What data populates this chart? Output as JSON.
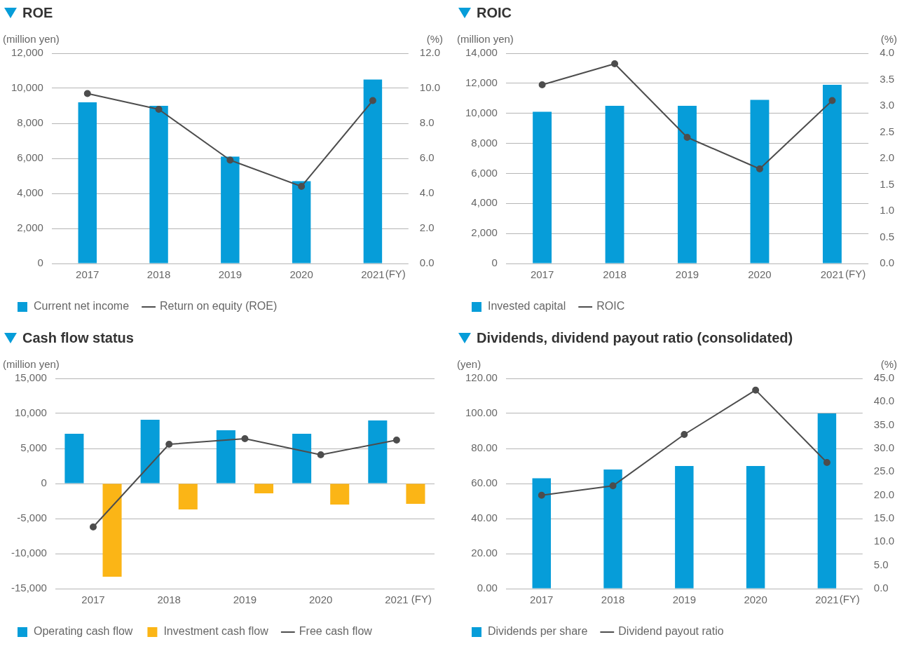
{
  "chart_data": [
    {
      "type": "bar",
      "title": "ROE",
      "categories": [
        "2017",
        "2018",
        "2019",
        "2020",
        "2021"
      ],
      "xlabel": "(FY)",
      "ylabel": "(million yen)",
      "y2label": "(%)",
      "series": [
        {
          "name": "Current net income",
          "color": "#069dd9",
          "values": [
            9200,
            9000,
            6100,
            4700,
            10500
          ]
        },
        {
          "name": "Return on equity (ROE)",
          "type": "line",
          "axis": "y2",
          "color": "#4d4d4d",
          "values": [
            9.7,
            8.8,
            5.9,
            4.4,
            9.3
          ]
        }
      ],
      "ylim": [
        0,
        12000
      ],
      "yticks": [
        {
          "value": 0,
          "label": "0"
        },
        {
          "value": 2000,
          "label": "2,000"
        },
        {
          "value": 4000,
          "label": "4,000"
        },
        {
          "value": 6000,
          "label": "6,000"
        },
        {
          "value": 8000,
          "label": "8,000"
        },
        {
          "value": 10000,
          "label": "10,000"
        },
        {
          "value": 12000,
          "label": "12,000"
        }
      ],
      "y2lim": [
        0,
        12
      ],
      "y2ticks": [
        {
          "value": 0,
          "label": "0.0"
        },
        {
          "value": 2,
          "label": "2.0"
        },
        {
          "value": 4,
          "label": "4.0"
        },
        {
          "value": 6,
          "label": "6.0"
        },
        {
          "value": 8,
          "label": "8.0"
        },
        {
          "value": 10,
          "label": "10.0"
        },
        {
          "value": 12,
          "label": "12.0"
        }
      ],
      "grid": "y",
      "legend": "bottom left",
      "marker": "circle",
      "line_style": "solid"
    },
    {
      "type": "bar",
      "title": "ROIC",
      "categories": [
        "2017",
        "2018",
        "2019",
        "2020",
        "2021"
      ],
      "xlabel": "(FY)",
      "ylabel": "(million yen)",
      "y2label": "(%)",
      "series": [
        {
          "name": "Invested capital",
          "color": "#069dd9",
          "values": [
            10100,
            10500,
            10500,
            10900,
            11900
          ]
        },
        {
          "name": "ROIC",
          "type": "line",
          "axis": "y2",
          "color": "#4d4d4d",
          "values": [
            3.4,
            3.8,
            2.4,
            1.8,
            3.1
          ]
        }
      ],
      "ylim": [
        0,
        14000
      ],
      "yticks": [
        {
          "value": 0,
          "label": "0"
        },
        {
          "value": 2000,
          "label": "2,000"
        },
        {
          "value": 4000,
          "label": "4,000"
        },
        {
          "value": 6000,
          "label": "6,000"
        },
        {
          "value": 8000,
          "label": "8,000"
        },
        {
          "value": 10000,
          "label": "10,000"
        },
        {
          "value": 12000,
          "label": "12,000"
        },
        {
          "value": 14000,
          "label": "14,000"
        }
      ],
      "y2lim": [
        0,
        4
      ],
      "y2ticks": [
        {
          "value": 0,
          "label": "0.0"
        },
        {
          "value": 0.5,
          "label": "0.5"
        },
        {
          "value": 1,
          "label": "1.0"
        },
        {
          "value": 1.5,
          "label": "1.5"
        },
        {
          "value": 2,
          "label": "2.0"
        },
        {
          "value": 2.5,
          "label": "2.5"
        },
        {
          "value": 3,
          "label": "3.0"
        },
        {
          "value": 3.5,
          "label": "3.5"
        },
        {
          "value": 4,
          "label": "4.0"
        }
      ],
      "grid": "y",
      "legend": "bottom left",
      "marker": "circle",
      "line_style": "solid"
    },
    {
      "type": "bar",
      "title": "Cash flow status",
      "categories": [
        "2017",
        "2018",
        "2019",
        "2020",
        "2021"
      ],
      "xlabel": "(FY)",
      "ylabel": "(million yen)",
      "series": [
        {
          "name": "Operating cash flow",
          "color": "#069dd9",
          "values": [
            7100,
            9100,
            7600,
            7100,
            9000
          ]
        },
        {
          "name": "Investment cash flow",
          "color": "#fbb516",
          "values": [
            -13300,
            -3700,
            -1400,
            -3000,
            -2900
          ]
        },
        {
          "name": "Free cash flow",
          "type": "line",
          "color": "#4d4d4d",
          "values": [
            -6200,
            5600,
            6400,
            4100,
            6200
          ]
        }
      ],
      "ylim": [
        -15000,
        15000
      ],
      "yticks": [
        {
          "value": -15000,
          "label": "-15,000"
        },
        {
          "value": -10000,
          "label": "-10,000"
        },
        {
          "value": -5000,
          "label": "-5,000"
        },
        {
          "value": 0,
          "label": "0"
        },
        {
          "value": 5000,
          "label": "5,000"
        },
        {
          "value": 10000,
          "label": "10,000"
        },
        {
          "value": 15000,
          "label": "15,000"
        }
      ],
      "grid": "y",
      "legend": "bottom left",
      "marker": "circle",
      "line_style": "solid"
    },
    {
      "type": "bar",
      "title": "Dividends, dividend payout ratio (consolidated)",
      "categories": [
        "2017",
        "2018",
        "2019",
        "2020",
        "2021"
      ],
      "xlabel": "(FY)",
      "ylabel": "(yen)",
      "y2label": "(%)",
      "series": [
        {
          "name": "Dividends per share",
          "color": "#069dd9",
          "values": [
            63,
            68,
            70,
            70,
            100
          ]
        },
        {
          "name": "Dividend payout ratio",
          "type": "line",
          "axis": "y2",
          "color": "#4d4d4d",
          "values": [
            20.0,
            22.0,
            33.0,
            42.5,
            27.0
          ]
        }
      ],
      "ylim": [
        0,
        120
      ],
      "yticks": [
        {
          "value": 0,
          "label": "0.00"
        },
        {
          "value": 20,
          "label": "20.00"
        },
        {
          "value": 40,
          "label": "40.00"
        },
        {
          "value": 60,
          "label": "60.00"
        },
        {
          "value": 80,
          "label": "80.00"
        },
        {
          "value": 100,
          "label": "100.00"
        },
        {
          "value": 120,
          "label": "120.00"
        }
      ],
      "y2lim": [
        0,
        45
      ],
      "y2ticks": [
        {
          "value": 0,
          "label": "0.0"
        },
        {
          "value": 5,
          "label": "5.0"
        },
        {
          "value": 10,
          "label": "10.0"
        },
        {
          "value": 15,
          "label": "15.0"
        },
        {
          "value": 20,
          "label": "20.0"
        },
        {
          "value": 25,
          "label": "25.0"
        },
        {
          "value": 30,
          "label": "30.0"
        },
        {
          "value": 35,
          "label": "35.0"
        },
        {
          "value": 40,
          "label": "40.0"
        },
        {
          "value": 45,
          "label": "45.0"
        }
      ],
      "grid": "y",
      "legend": "bottom left",
      "marker": "circle",
      "line_style": "solid"
    }
  ]
}
